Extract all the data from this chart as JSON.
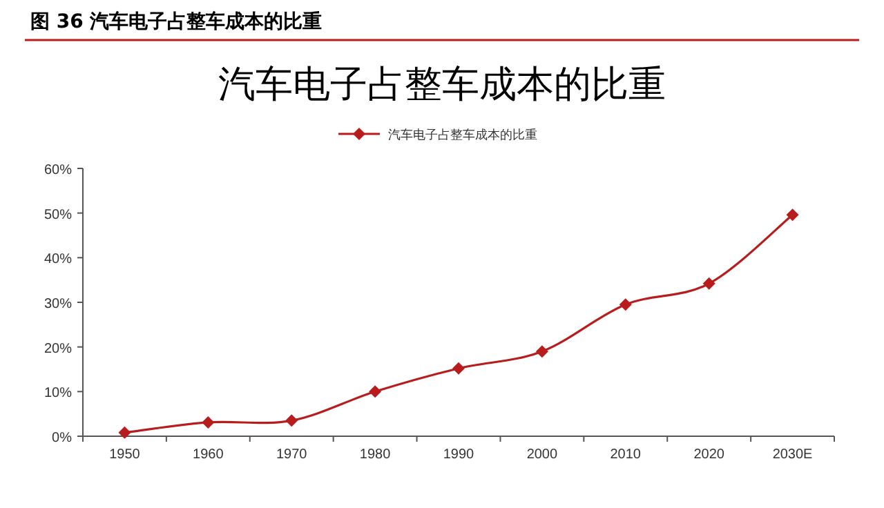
{
  "chart_data": {
    "type": "line",
    "title": "汽车电子占整车成本的比重",
    "annotations": [
      "图 36  汽车电子占整车成本的比重"
    ],
    "categories": [
      "1950",
      "1960",
      "1970",
      "1980",
      "1990",
      "2000",
      "2010",
      "2020",
      "2030E"
    ],
    "series": [
      {
        "name": "汽车电子占整车成本的比重",
        "color": "#b81c1c",
        "values": [
          0.8,
          3.1,
          3.5,
          10,
          15.2,
          19,
          29.5,
          34.2,
          49.6
        ]
      }
    ],
    "ylim": [
      0,
      60
    ],
    "yticks": [
      {
        "value": 0,
        "label": "0%"
      },
      {
        "value": 10,
        "label": "10%"
      },
      {
        "value": 20,
        "label": "20%"
      },
      {
        "value": 30,
        "label": "30%"
      },
      {
        "value": 40,
        "label": "40%"
      },
      {
        "value": 50,
        "label": "50%"
      },
      {
        "value": 60,
        "label": "60%"
      }
    ],
    "legend": "top",
    "marker": "diamond",
    "line_style": "solid",
    "grid": false
  }
}
